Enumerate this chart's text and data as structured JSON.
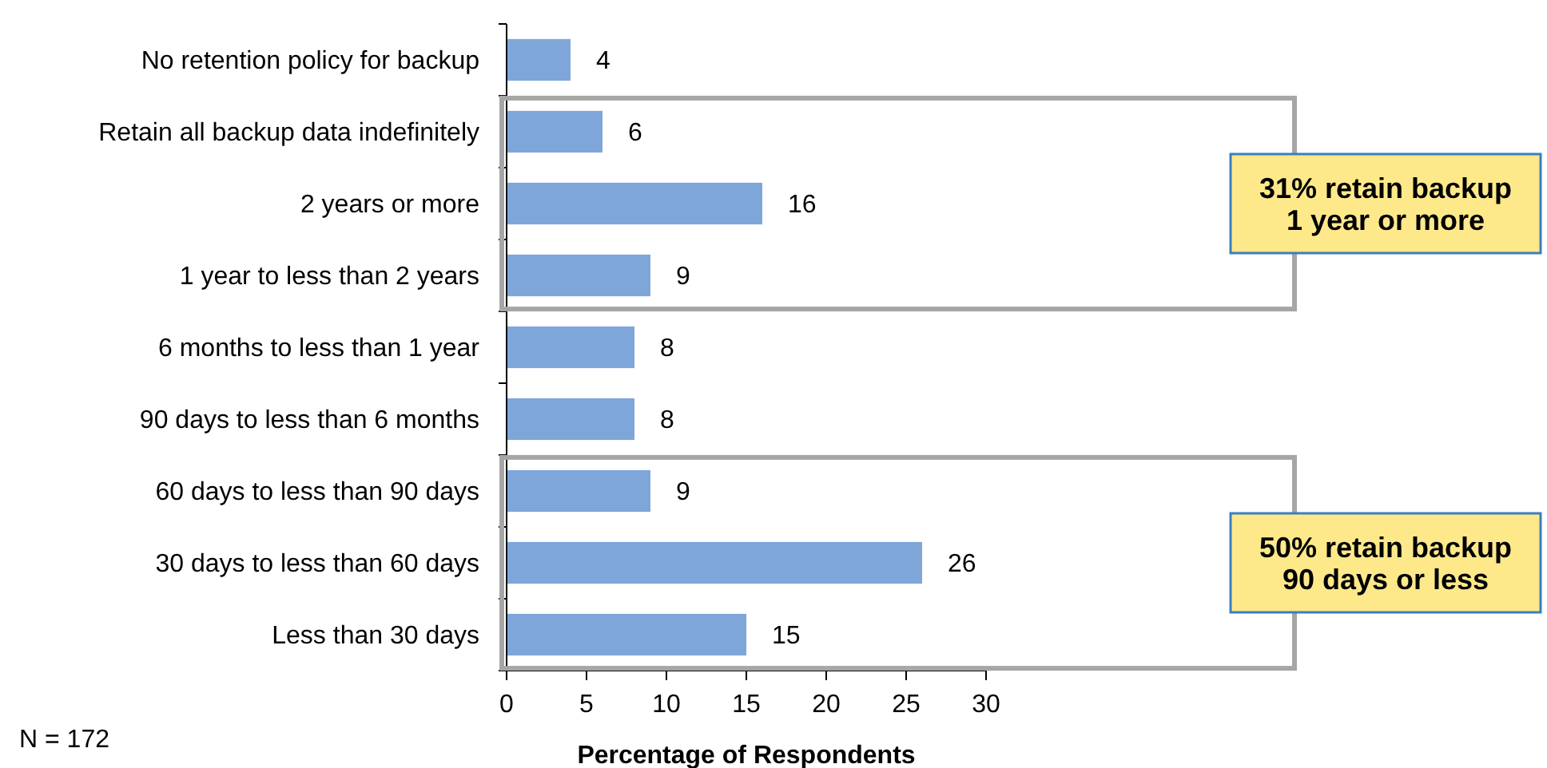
{
  "chart_data": {
    "type": "bar",
    "orientation": "horizontal",
    "xlabel": "Percentage of Respondents",
    "categories": [
      "No retention policy for backup",
      "Retain all backup data indefinitely",
      "2 years or more",
      "1 year to less than 2 years",
      "6 months to less than 1 year",
      "90 days to less than 6 months",
      "60 days to less than 90 days",
      "30 days to less than 60 days",
      "Less than 30 days"
    ],
    "values": [
      4,
      6,
      16,
      9,
      8,
      8,
      9,
      26,
      15
    ],
    "color": "#7ea6d9",
    "data_labels": true,
    "grid": false,
    "xlim": [
      0,
      30
    ],
    "xticks": [
      0,
      5,
      10,
      15,
      20,
      25,
      30
    ],
    "annotations": [
      "31% retain backup\n1 year or more",
      "50% retain backup\n90 days or less",
      "N = 172"
    ]
  }
}
